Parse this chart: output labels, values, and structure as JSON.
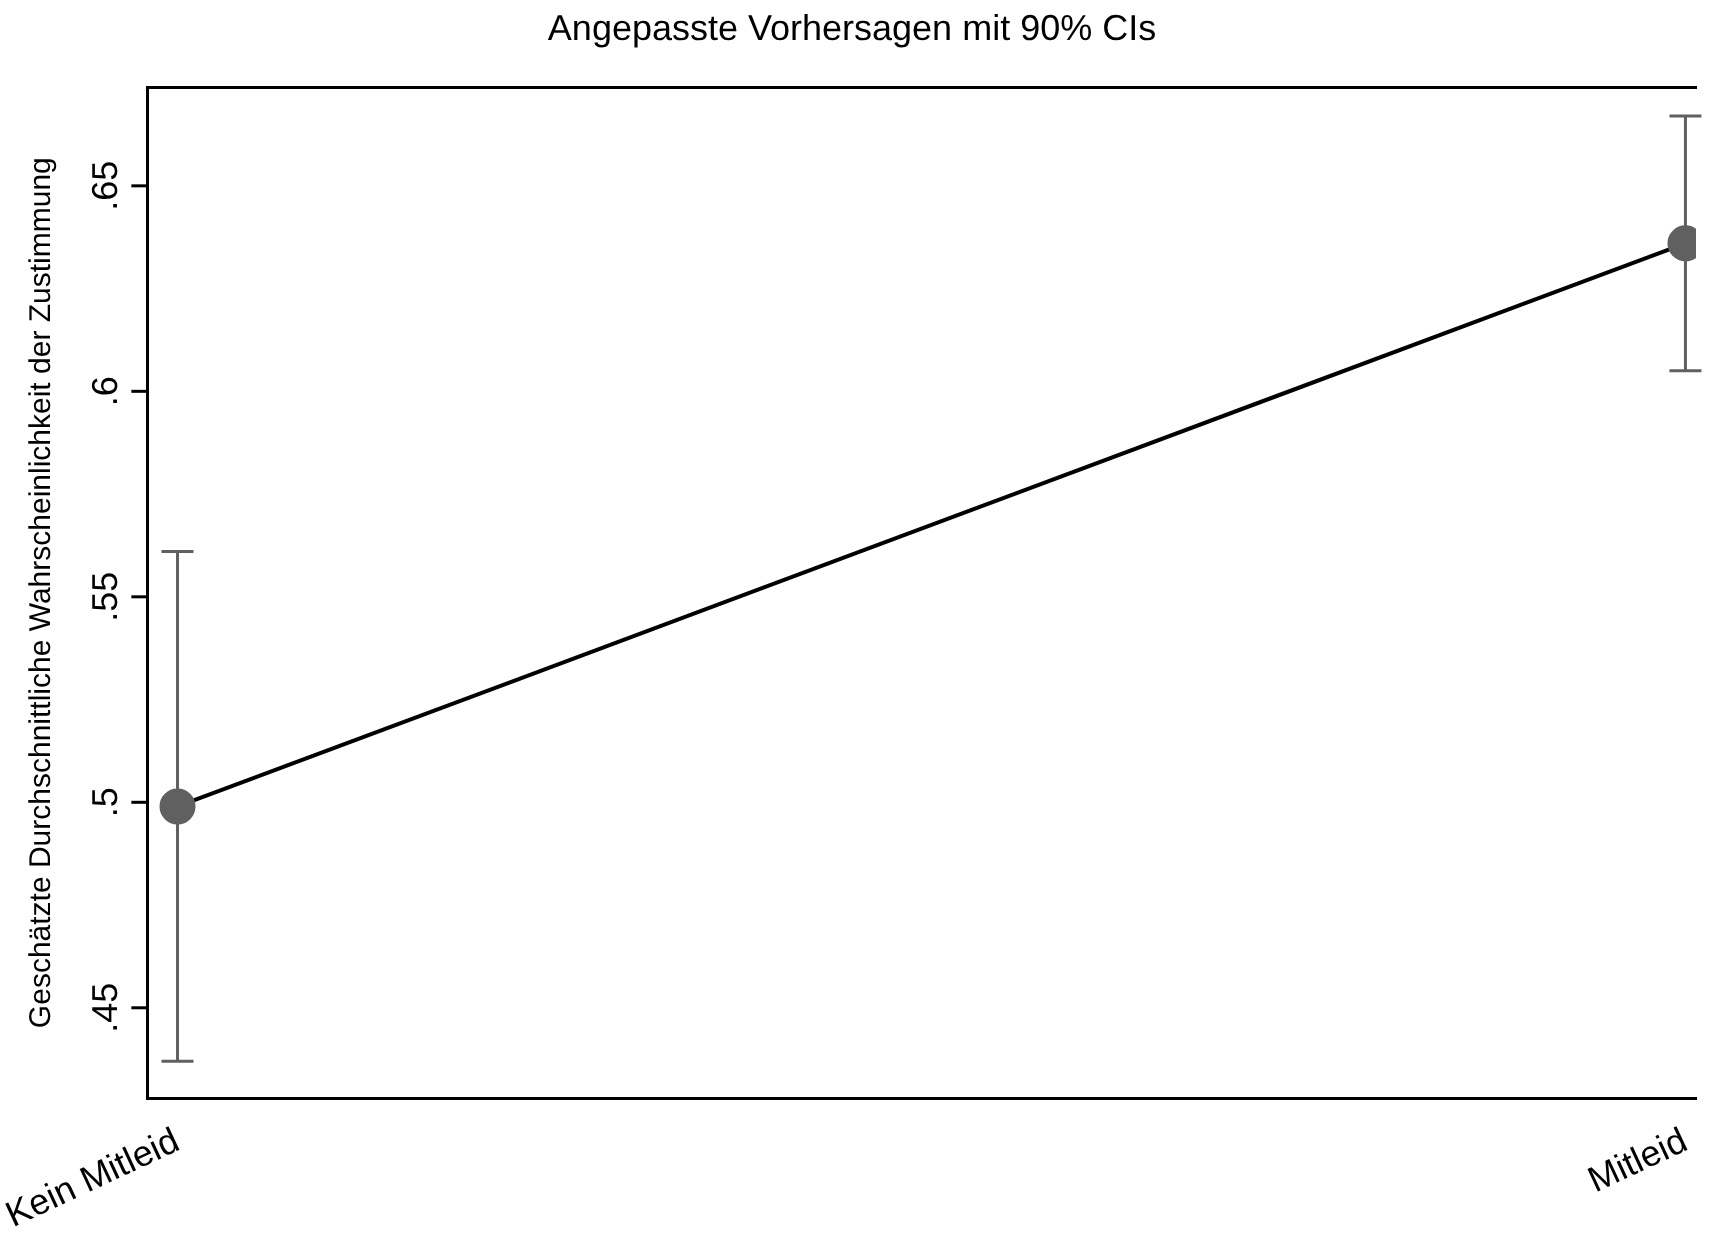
{
  "chart_data": {
    "type": "line",
    "title": "Angepasste Vorhersagen mit 90% CIs",
    "ylabel": "Geschätzte Durchschnittliche Wahrscheinlichkeit der Zustimmung",
    "categories": [
      "Kein Mitleid",
      "Mitleid"
    ],
    "series": [
      {
        "color": "#000000",
        "values": [
          0.499,
          0.636
        ],
        "errors": [
          [
            0.437,
            0.561
          ],
          [
            0.605,
            0.667
          ]
        ]
      }
    ],
    "marker": "circle",
    "line_style": "solid",
    "grid": false,
    "legend": false,
    "ylim": [
      0.428,
      0.674
    ],
    "yticks": [
      {
        "value": 0.45,
        "label": ".45"
      },
      {
        "value": 0.5,
        "label": ".5"
      },
      {
        "value": 0.55,
        "label": ".55"
      },
      {
        "value": 0.6,
        "label": ".6"
      },
      {
        "value": 0.65,
        "label": ".65"
      }
    ]
  }
}
